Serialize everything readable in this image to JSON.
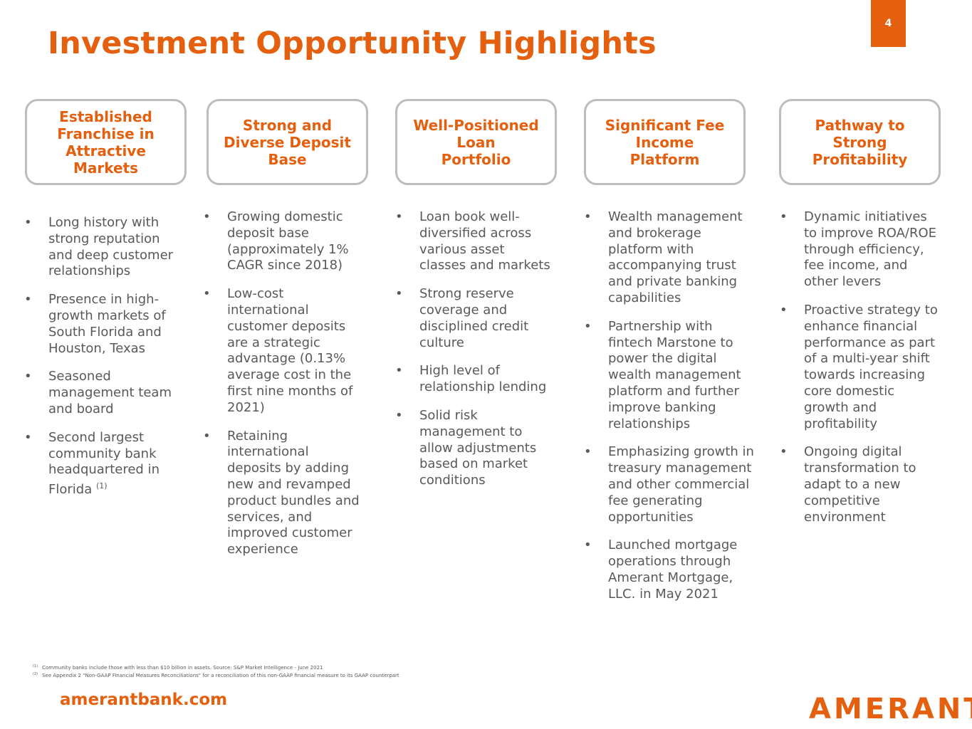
{
  "header": {
    "title": "Investment Opportunity Highlights",
    "page_number": "4"
  },
  "columns": [
    {
      "heading": "Established\nFranchise in\nAttractive\nMarkets",
      "bullets": [
        "Long history with\nstrong reputation\nand deep customer\nrelationships",
        "Presence in high-\ngrowth markets of\nSouth Florida and\nHouston, Texas",
        "Seasoned\nmanagement team\nand board",
        "Second largest\ncommunity bank\nheadquartered in\nFlorida"
      ],
      "last_bullet_sup": "(1)"
    },
    {
      "heading": "Strong and\nDiverse Deposit\nBase",
      "bullets": [
        "Growing domestic\ndeposit base\n(approximately 1%\nCAGR since 2018)",
        "Low-cost\ninternational\ncustomer deposits\nare a strategic\nadvantage (0.13%\naverage cost in the\nfirst nine months of\n2021)",
        "Retaining\ninternational\ndeposits by adding\nnew and revamped\nproduct bundles and\nservices, and\nimproved customer\nexperience"
      ]
    },
    {
      "heading": "Well-Positioned\nLoan\nPortfolio",
      "bullets": [
        "Loan book well-\ndiversified across\nvarious asset\nclasses and markets",
        "Strong reserve\ncoverage and\ndisciplined credit\nculture",
        "High level of\nrelationship lending",
        "Solid risk\nmanagement to\nallow adjustments\nbased on market\nconditions"
      ]
    },
    {
      "heading": "Significant Fee\nIncome\nPlatform",
      "bullets": [
        "Wealth management\nand brokerage\nplatform with\naccompanying trust\nand private banking\ncapabilities",
        "Partnership with\nfintech Marstone to\npower the digital\nwealth management\nplatform and further\nimprove banking\nrelationships",
        "Emphasizing growth in\ntreasury management\nand other commercial\nfee generating\nopportunities",
        "Launched mortgage\noperations through\nAmerant Mortgage,\nLLC. in May 2021"
      ]
    },
    {
      "heading": "Pathway to\nStrong\nProfitability",
      "bullets": [
        "Dynamic initiatives\nto improve ROA/ROE\nthrough efficiency,\nfee income, and\nother levers",
        "Proactive strategy to\nenhance financial\nperformance as part\nof a multi-year shift\ntowards increasing\ncore domestic\ngrowth and\nprofitability",
        "Ongoing digital\ntransformation to\nadapt to a new\ncompetitive\nenvironment"
      ]
    }
  ],
  "footnotes": [
    {
      "mark": "(1)",
      "text": "Community banks include those with less than $10 billion in assets. Source: S&P Market Intelligence - June  2021"
    },
    {
      "mark": "(2)",
      "text": "See Appendix 2 \"Non-GAAP Financial Measures Reconciliations\" for a reconciliation of this non-GAAP financial measure to its GAAP counterpart"
    }
  ],
  "footer": {
    "website": "amerantbank.com",
    "logo_text": "AMERANT"
  },
  "colors": {
    "accent": "#E4600F",
    "box_border": "#BDBDBD",
    "body_text": "#595959"
  }
}
